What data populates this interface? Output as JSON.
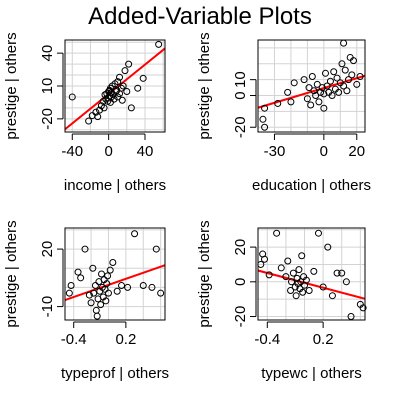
{
  "figure": {
    "title": "Added-Variable Plots",
    "fit_color": "#ff0000",
    "grid_color": "#d3d3d3"
  },
  "chart_data": [
    {
      "type": "scatter",
      "xlabel": "income | others",
      "ylabel": "prestige | others",
      "xlim": [
        -48,
        62
      ],
      "ylim": [
        -32,
        52
      ],
      "xticks": [
        -40,
        0,
        40
      ],
      "xtick_labels": [
        "-40",
        "0",
        "40"
      ],
      "yticks": [
        -20,
        10,
        40
      ],
      "ytick_labels": [
        "-20",
        "10",
        "40"
      ],
      "xgrid": [
        -40,
        -20,
        0,
        20,
        40,
        60
      ],
      "ygrid": [
        -30,
        -20,
        -10,
        0,
        10,
        20,
        30,
        40,
        50
      ],
      "fit_line": {
        "x": [
          -48,
          62
        ],
        "y": [
          -29.5,
          44.3
        ]
      },
      "points": [
        [
          -40,
          0
        ],
        [
          -22,
          -22
        ],
        [
          -18,
          -17
        ],
        [
          -14,
          -14
        ],
        [
          -12,
          -18
        ],
        [
          -10,
          -12
        ],
        [
          -8,
          -8
        ],
        [
          -6,
          -4
        ],
        [
          -5,
          -10
        ],
        [
          -4,
          2
        ],
        [
          -3,
          -2
        ],
        [
          -2,
          3
        ],
        [
          -1,
          -4
        ],
        [
          0,
          5
        ],
        [
          0,
          -1
        ],
        [
          1,
          6
        ],
        [
          1,
          1
        ],
        [
          2,
          -5
        ],
        [
          2,
          8
        ],
        [
          3,
          0
        ],
        [
          3,
          4
        ],
        [
          4,
          10
        ],
        [
          5,
          2
        ],
        [
          6,
          -2
        ],
        [
          7,
          12
        ],
        [
          8,
          5
        ],
        [
          9,
          6
        ],
        [
          10,
          0
        ],
        [
          10,
          14
        ],
        [
          12,
          3
        ],
        [
          12,
          18
        ],
        [
          14,
          8
        ],
        [
          15,
          -3
        ],
        [
          16,
          10
        ],
        [
          18,
          24
        ],
        [
          20,
          5
        ],
        [
          22,
          30
        ],
        [
          25,
          -10
        ],
        [
          32,
          8
        ],
        [
          38,
          17
        ],
        [
          55,
          48
        ]
      ]
    },
    {
      "type": "scatter",
      "xlabel": "education | others",
      "ylabel": "prestige | others",
      "xlim": [
        -40,
        25
      ],
      "ylim": [
        -23,
        35
      ],
      "xticks": [
        -30,
        0,
        20
      ],
      "xtick_labels": [
        "-30",
        "0",
        "20"
      ],
      "yticks": [
        -20,
        0,
        10
      ],
      "ytick_labels": [
        "-20",
        "0",
        "10"
      ],
      "xgrid": [
        -40,
        -30,
        -20,
        -10,
        0,
        10,
        20
      ],
      "ygrid": [
        -20,
        -10,
        0,
        10,
        20,
        30
      ],
      "fit_line": {
        "x": [
          -40,
          25
        ],
        "y": [
          -7.7,
          12.5
        ]
      },
      "points": [
        [
          -37,
          -15
        ],
        [
          -36,
          -20
        ],
        [
          -36,
          -8
        ],
        [
          -28,
          -5
        ],
        [
          -22,
          2
        ],
        [
          -20,
          -4
        ],
        [
          -18,
          8
        ],
        [
          -12,
          10
        ],
        [
          -10,
          -2
        ],
        [
          -9,
          5
        ],
        [
          -8,
          -6
        ],
        [
          -7,
          12
        ],
        [
          -6,
          3
        ],
        [
          -5,
          0
        ],
        [
          -4,
          7
        ],
        [
          -3,
          -4
        ],
        [
          -2,
          2
        ],
        [
          -1,
          5
        ],
        [
          0,
          -8
        ],
        [
          0,
          1
        ],
        [
          1,
          14
        ],
        [
          2,
          6
        ],
        [
          3,
          2
        ],
        [
          4,
          9
        ],
        [
          5,
          0
        ],
        [
          6,
          15
        ],
        [
          7,
          4
        ],
        [
          8,
          11
        ],
        [
          9,
          2
        ],
        [
          10,
          8
        ],
        [
          11,
          20
        ],
        [
          12,
          6
        ],
        [
          13,
          16
        ],
        [
          14,
          3
        ],
        [
          15,
          10
        ],
        [
          16,
          24
        ],
        [
          17,
          13
        ],
        [
          18,
          22
        ],
        [
          20,
          7
        ],
        [
          22,
          12
        ],
        [
          12,
          33
        ]
      ]
    },
    {
      "type": "scatter",
      "xlabel": "typeprof | others",
      "ylabel": "prestige | others",
      "xlim": [
        -0.5,
        0.65
      ],
      "ylim": [
        -17,
        31
      ],
      "xticks": [
        -0.4,
        0.2
      ],
      "xtick_labels": [
        "-0.4",
        "0.2"
      ],
      "yticks": [
        -10,
        20
      ],
      "ytick_labels": [
        "-10",
        "20"
      ],
      "xgrid": [
        -0.4,
        -0.2,
        0,
        0.2,
        0.4,
        0.6
      ],
      "ygrid": [
        -10,
        0,
        10,
        20,
        30
      ],
      "fit_line": {
        "x": [
          -0.5,
          0.65
        ],
        "y": [
          -6.6,
          11.6
        ]
      },
      "points": [
        [
          -0.45,
          -3
        ],
        [
          -0.43,
          1
        ],
        [
          -0.35,
          8
        ],
        [
          -0.32,
          5
        ],
        [
          -0.27,
          20
        ],
        [
          -0.22,
          -4
        ],
        [
          -0.2,
          -8
        ],
        [
          -0.18,
          10
        ],
        [
          -0.17,
          -3
        ],
        [
          -0.15,
          1
        ],
        [
          -0.14,
          -12
        ],
        [
          -0.13,
          -15
        ],
        [
          -0.12,
          -6
        ],
        [
          -0.11,
          3
        ],
        [
          -0.1,
          -2
        ],
        [
          -0.09,
          -9
        ],
        [
          -0.08,
          7
        ],
        [
          -0.07,
          0
        ],
        [
          -0.06,
          -5
        ],
        [
          -0.05,
          4
        ],
        [
          -0.04,
          -1
        ],
        [
          -0.03,
          -7
        ],
        [
          -0.02,
          2
        ],
        [
          -0.01,
          6
        ],
        [
          0,
          -3
        ],
        [
          0.02,
          9
        ],
        [
          0.05,
          13
        ],
        [
          0.1,
          -2
        ],
        [
          0.15,
          1
        ],
        [
          0.22,
          0
        ],
        [
          0.3,
          28
        ],
        [
          0.4,
          1
        ],
        [
          0.5,
          0
        ],
        [
          0.55,
          20
        ],
        [
          0.6,
          -3
        ]
      ]
    },
    {
      "type": "scatter",
      "xlabel": "typewc | others",
      "ylabel": "prestige | others",
      "xlim": [
        -0.5,
        0.65
      ],
      "ylim": [
        -22,
        31
      ],
      "xticks": [
        -0.4,
        0.2
      ],
      "xtick_labels": [
        "-0.4",
        "0.2"
      ],
      "yticks": [
        -20,
        0,
        20
      ],
      "ytick_labels": [
        "-20",
        "0",
        "20"
      ],
      "xgrid": [
        -0.4,
        -0.2,
        0,
        0.2,
        0.4,
        0.6
      ],
      "ygrid": [
        -20,
        -10,
        0,
        10,
        20,
        30
      ],
      "fit_line": {
        "x": [
          -0.5,
          0.65
        ],
        "y": [
          6.5,
          -9.8
        ]
      },
      "points": [
        [
          -0.47,
          10
        ],
        [
          -0.45,
          16
        ],
        [
          -0.43,
          13
        ],
        [
          -0.38,
          4
        ],
        [
          -0.3,
          28
        ],
        [
          -0.25,
          8
        ],
        [
          -0.2,
          3
        ],
        [
          -0.18,
          12
        ],
        [
          -0.15,
          -5
        ],
        [
          -0.14,
          0
        ],
        [
          -0.12,
          5
        ],
        [
          -0.1,
          -3
        ],
        [
          -0.09,
          -8
        ],
        [
          -0.08,
          2
        ],
        [
          -0.07,
          -1
        ],
        [
          -0.06,
          7
        ],
        [
          -0.05,
          -4
        ],
        [
          -0.04,
          0
        ],
        [
          -0.03,
          15
        ],
        [
          -0.02,
          -6
        ],
        [
          -0.01,
          3
        ],
        [
          0,
          -2
        ],
        [
          0.02,
          1
        ],
        [
          0.05,
          -5
        ],
        [
          0.1,
          6
        ],
        [
          0.15,
          28
        ],
        [
          0.2,
          -3
        ],
        [
          0.25,
          20
        ],
        [
          0.3,
          -8
        ],
        [
          0.35,
          5
        ],
        [
          0.4,
          5
        ],
        [
          0.45,
          0
        ],
        [
          0.5,
          -20
        ],
        [
          0.6,
          -13
        ],
        [
          0.63,
          -15
        ]
      ]
    }
  ]
}
